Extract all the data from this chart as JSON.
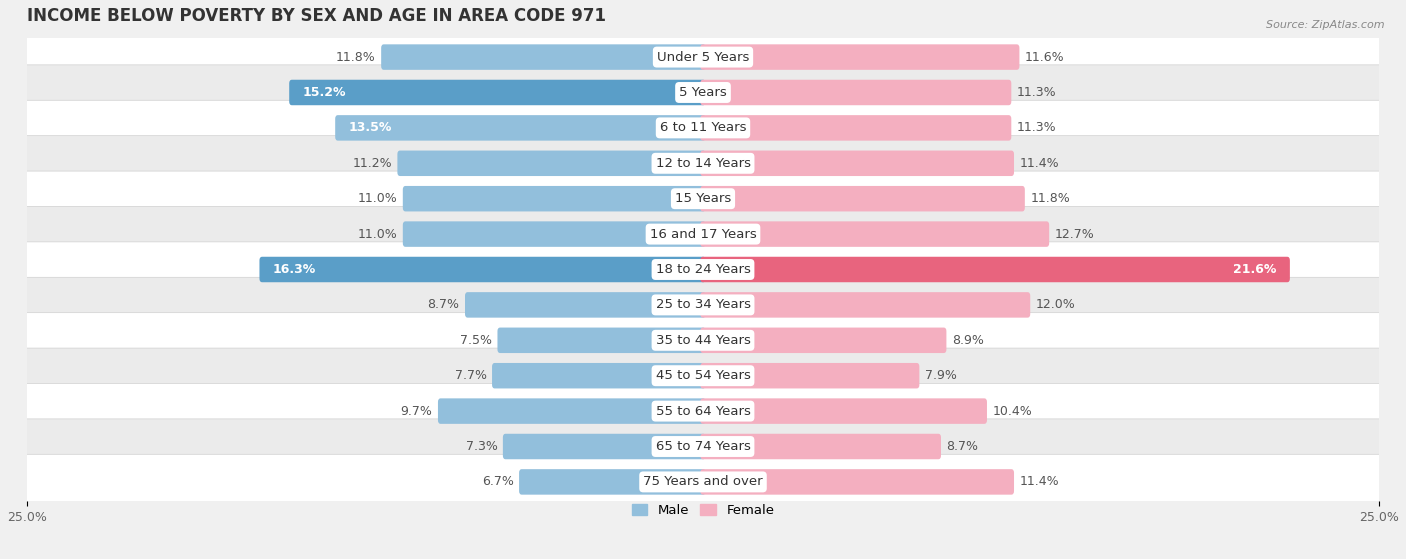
{
  "title": "INCOME BELOW POVERTY BY SEX AND AGE IN AREA CODE 971",
  "source": "Source: ZipAtlas.com",
  "categories": [
    "Under 5 Years",
    "5 Years",
    "6 to 11 Years",
    "12 to 14 Years",
    "15 Years",
    "16 and 17 Years",
    "18 to 24 Years",
    "25 to 34 Years",
    "35 to 44 Years",
    "45 to 54 Years",
    "55 to 64 Years",
    "65 to 74 Years",
    "75 Years and over"
  ],
  "male_values": [
    11.8,
    15.2,
    13.5,
    11.2,
    11.0,
    11.0,
    16.3,
    8.7,
    7.5,
    7.7,
    9.7,
    7.3,
    6.7
  ],
  "female_values": [
    11.6,
    11.3,
    11.3,
    11.4,
    11.8,
    12.7,
    21.6,
    12.0,
    8.9,
    7.9,
    10.4,
    8.7,
    11.4
  ],
  "male_color": "#92bfdc",
  "male_color_dark": "#5a9ec8",
  "female_color": "#f4afc0",
  "female_color_dark": "#e8647e",
  "male_label": "Male",
  "female_label": "Female",
  "xlim": 25.0,
  "row_color_odd": "#f5f5f5",
  "row_color_even": "#e8e8e8",
  "background_color": "#f0f0f0",
  "title_fontsize": 12,
  "label_fontsize": 9.5,
  "value_fontsize": 9,
  "tick_fontsize": 9,
  "source_fontsize": 8
}
